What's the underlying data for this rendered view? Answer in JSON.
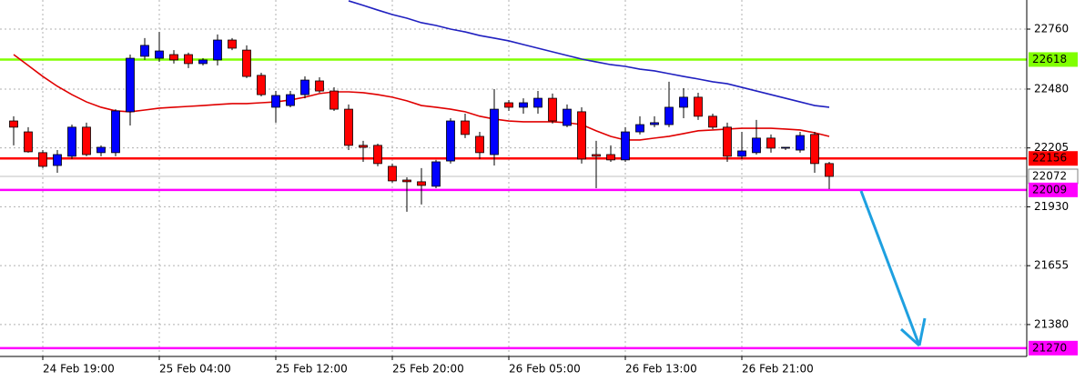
{
  "chart_data": {
    "type": "candlestick",
    "categories": [
      null,
      null,
      "24 Feb 19:00",
      null,
      null,
      null,
      null,
      null,
      null,
      null,
      "25 Feb 04:00",
      null,
      null,
      null,
      null,
      null,
      null,
      null,
      "25 Feb 12:00",
      null,
      null,
      null,
      null,
      null,
      null,
      null,
      "25 Feb 20:00",
      null,
      null,
      null,
      null,
      null,
      null,
      null,
      "26 Feb 05:00",
      null,
      null,
      null,
      null,
      null,
      null,
      null,
      "26 Feb 13:00",
      null,
      null,
      null,
      null,
      null,
      null,
      null,
      "26 Feb 21:00",
      null,
      null,
      null,
      null,
      null,
      null
    ],
    "open": [
      22331,
      22280,
      22183,
      22123,
      22166,
      22302,
      22183,
      22183,
      22374,
      22633,
      22624,
      22641,
      22641,
      22599,
      22616,
      22709,
      22662,
      22544,
      22395,
      22403,
      22454,
      22518,
      22471,
      22386,
      22217,
      22217,
      22119,
      22055,
      22047,
      22026,
      22144,
      22331,
      22259,
      22174,
      22416,
      22395,
      22395,
      22437,
      22310,
      22374,
      22174,
      22174,
      22149,
      22280,
      22314,
      22314,
      22395,
      22442,
      22353,
      22302,
      22166,
      22183,
      22251,
      22204,
      22195,
      22268,
      22132
    ],
    "high": [
      22353,
      22302,
      22195,
      22195,
      22314,
      22323,
      22217,
      22386,
      22641,
      22718,
      22747,
      22662,
      22650,
      22624,
      22735,
      22718,
      22684,
      22556,
      22471,
      22471,
      22539,
      22535,
      22488,
      22408,
      22238,
      22225,
      22132,
      22068,
      22111,
      22149,
      22344,
      22365,
      22280,
      22480,
      22429,
      22437,
      22471,
      22459,
      22408,
      22395,
      22238,
      22217,
      22302,
      22353,
      22353,
      22514,
      22484,
      22463,
      22365,
      22323,
      22280,
      22336,
      22268,
      22208,
      22280,
      22280,
      22140
    ],
    "low": [
      22217,
      22183,
      22111,
      22089,
      22153,
      22166,
      22166,
      22166,
      22310,
      22616,
      22607,
      22599,
      22578,
      22590,
      22590,
      22662,
      22531,
      22446,
      22323,
      22395,
      22437,
      22463,
      22378,
      22195,
      22140,
      22119,
      22043,
      21907,
      21941,
      22017,
      22132,
      22251,
      22153,
      22123,
      22378,
      22365,
      22365,
      22319,
      22302,
      22132,
      22017,
      22140,
      22140,
      22268,
      22302,
      22302,
      22344,
      22336,
      22293,
      22140,
      22153,
      22174,
      22183,
      22195,
      22183,
      22089,
      22013
    ],
    "close": [
      22302,
      22187,
      22119,
      22174,
      22302,
      22174,
      22208,
      22378,
      22624,
      22684,
      22658,
      22616,
      22599,
      22616,
      22709,
      22671,
      22539,
      22454,
      22450,
      22454,
      22522,
      22471,
      22386,
      22217,
      22208,
      22132,
      22051,
      22047,
      22030,
      22140,
      22331,
      22268,
      22183,
      22386,
      22395,
      22416,
      22437,
      22331,
      22386,
      22153,
      22166,
      22149,
      22280,
      22314,
      22323,
      22395,
      22442,
      22353,
      22302,
      22166,
      22191,
      22251,
      22204,
      22208,
      22263,
      22132,
      22072
    ],
    "up_color": "#0000ff",
    "down_color": "#ff0000",
    "overlays": [
      {
        "color": "#e00000",
        "values": [
          22641,
          22590,
          22539,
          22493,
          22454,
          22420,
          22395,
          22378,
          22374,
          22382,
          22391,
          22395,
          22399,
          22403,
          22408,
          22412,
          22412,
          22416,
          22420,
          22429,
          22442,
          22459,
          22467,
          22467,
          22463,
          22454,
          22442,
          22425,
          22403,
          22395,
          22386,
          22374,
          22353,
          22340,
          22331,
          22327,
          22327,
          22327,
          22323,
          22314,
          22285,
          22259,
          22242,
          22242,
          22251,
          22259,
          22272,
          22285,
          22289,
          22293,
          22297,
          22297,
          22297,
          22293,
          22289,
          22276,
          22259
        ]
      },
      {
        "color": "#2020c0",
        "values": [
          null,
          null,
          null,
          null,
          null,
          null,
          null,
          null,
          null,
          null,
          null,
          null,
          null,
          null,
          null,
          null,
          null,
          null,
          null,
          null,
          null,
          null,
          null,
          22892,
          22871,
          22849,
          22828,
          22811,
          22790,
          22777,
          22760,
          22747,
          22730,
          22718,
          22705,
          22688,
          22671,
          22654,
          22637,
          22620,
          22607,
          22594,
          22586,
          22573,
          22565,
          22552,
          22539,
          22527,
          22514,
          22505,
          22488,
          22471,
          22454,
          22437,
          22420,
          22403,
          22395
        ]
      }
    ],
    "levels": [
      {
        "value": 22618,
        "color": "#80ff00",
        "text_color": "#ffffff"
      },
      {
        "value": 22156,
        "color": "#ff0000",
        "text_color": "#ffffff"
      },
      {
        "value": 22072,
        "color": "#c0c0c0",
        "text_color": "#000000"
      },
      {
        "value": 22009,
        "color": "#ff00ff",
        "text_color": "#ffffff"
      },
      {
        "value": 21270,
        "color": "#ff00ff",
        "text_color": "#ffffff"
      }
    ],
    "ylim": [
      21231,
      22896
    ],
    "yticks": [
      22760,
      22480,
      22205,
      21930,
      21655,
      21380
    ],
    "grid": true
  }
}
